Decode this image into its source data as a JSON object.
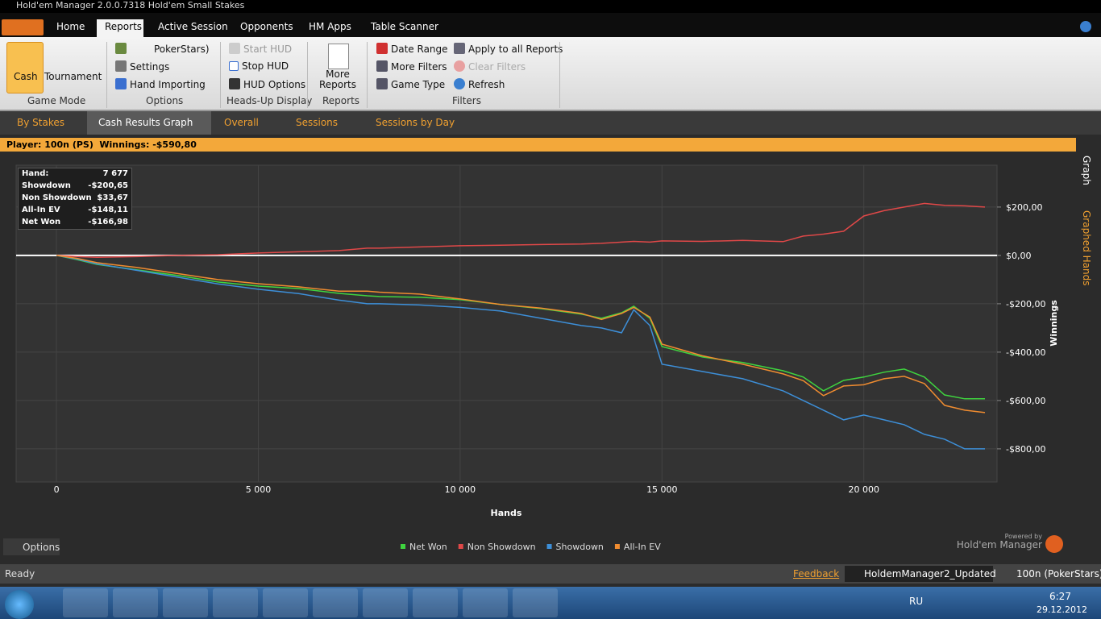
{
  "window": {
    "title": "Hold'em Manager 2.0.0.7318 Hold'em Small Stakes"
  },
  "menu": [
    "Home",
    "Reports",
    "Active Session",
    "Opponents",
    "HM Apps",
    "Table Scanner"
  ],
  "ribbon": {
    "game_mode": {
      "title": "Game Mode",
      "items": [
        "Cash",
        "Tournament"
      ]
    },
    "options": {
      "title": "Options",
      "items": [
        "PokerStars)",
        "Settings",
        "Hand Importing"
      ]
    },
    "hud": {
      "title": "Heads-Up Display",
      "items": [
        "Start HUD",
        "Stop HUD",
        "HUD Options"
      ]
    },
    "reports": {
      "title": "Reports",
      "items": [
        "More Reports"
      ]
    },
    "filters": {
      "title": "Filters",
      "items": [
        "Date Range",
        "More Filters",
        "Game Type",
        "Apply to all Reports",
        "Clear Filters",
        "Refresh"
      ]
    }
  },
  "tabs": [
    "By Stakes",
    "Cash Results Graph",
    "Overall",
    "Sessions",
    "Sessions by Day"
  ],
  "player_bar": {
    "player": "Player: 100n (PS)",
    "winnings": "Winnings: -$590,80"
  },
  "stats": [
    [
      "Hand:",
      "7 677"
    ],
    [
      "Showdown",
      "-$200,65"
    ],
    [
      "Non Showdown",
      "$33,67"
    ],
    [
      "All-In EV",
      "-$148,11"
    ],
    [
      "Net Won",
      "-$166,98"
    ]
  ],
  "side_tabs": [
    "Graph",
    "Graphed Hands"
  ],
  "chart_data": {
    "type": "line",
    "xlabel": "Hands",
    "ylabel": "Winnings",
    "x": [
      0,
      500,
      1000,
      2000,
      3000,
      4000,
      5000,
      6000,
      7000,
      7700,
      8000,
      9000,
      10000,
      11000,
      12000,
      13000,
      13500,
      14000,
      14300,
      14700,
      15000,
      16000,
      17000,
      18000,
      18500,
      19000,
      19500,
      20000,
      20500,
      21000,
      21500,
      22000,
      22500,
      23000
    ],
    "series": [
      {
        "name": "Net Won",
        "color": "#3fd43f",
        "values": [
          0,
          -17,
          -37,
          -60,
          -83,
          -110,
          -127,
          -137,
          -157,
          -167,
          -170,
          -173,
          -183,
          -203,
          -220,
          -243,
          -260,
          -237,
          -210,
          -260,
          -377,
          -420,
          -443,
          -477,
          -503,
          -560,
          -517,
          -503,
          -483,
          -470,
          -503,
          -577,
          -593,
          -593
        ]
      },
      {
        "name": "Non Showdown",
        "color": "#e04848",
        "values": [
          0,
          -5,
          -8,
          -5,
          0,
          3,
          10,
          15,
          20,
          30,
          30,
          35,
          40,
          42,
          45,
          47,
          50,
          55,
          58,
          55,
          60,
          58,
          62,
          57,
          80,
          88,
          100,
          163,
          185,
          200,
          215,
          207,
          205,
          200
        ]
      },
      {
        "name": "Showdown",
        "color": "#3d8fd8",
        "values": [
          0,
          -15,
          -35,
          -62,
          -90,
          -118,
          -140,
          -158,
          -185,
          -200,
          -200,
          -205,
          -215,
          -230,
          -260,
          -290,
          -300,
          -320,
          -225,
          -290,
          -450,
          -480,
          -510,
          -560,
          -600,
          -640,
          -680,
          -660,
          -680,
          -700,
          -740,
          -760,
          -800,
          -800
        ]
      },
      {
        "name": "All-In EV",
        "color": "#f08c30",
        "values": [
          0,
          -12,
          -30,
          -50,
          -75,
          -100,
          -117,
          -130,
          -148,
          -148,
          -152,
          -160,
          -180,
          -203,
          -218,
          -240,
          -265,
          -240,
          -215,
          -255,
          -367,
          -415,
          -450,
          -490,
          -518,
          -580,
          -540,
          -535,
          -510,
          -500,
          -530,
          -620,
          -640,
          -650
        ]
      }
    ],
    "xlim": [
      -1000,
      23300
    ],
    "ylim": [
      -937,
      373
    ],
    "xticks": [
      0,
      {
        "value": 5000,
        "label": "5 000"
      },
      {
        "value": 10000,
        "label": "10 000"
      },
      {
        "value": 15000,
        "label": "15 000"
      },
      {
        "value": 20000,
        "label": "20 000"
      }
    ],
    "yticks": [
      {
        "value": 200,
        "label": "$200,00"
      },
      {
        "value": 0,
        "label": "$0,00"
      },
      {
        "value": -200,
        "label": "-$200,00"
      },
      {
        "value": -400,
        "label": "-$400,00"
      },
      {
        "value": -600,
        "label": "-$600,00"
      },
      {
        "value": -800,
        "label": "-$800,00"
      }
    ],
    "grid": true
  },
  "options_button": "Options",
  "branding": {
    "powered": "Powered by",
    "name": "Hold'em Manager"
  },
  "status": {
    "left": "Ready",
    "feedback": "Feedback",
    "task": "HoldemManager2_Updated",
    "user": "100n (PokerStars)"
  },
  "taskbar": {
    "lang": "RU",
    "time": "6:27",
    "date": "29.12.2012"
  }
}
